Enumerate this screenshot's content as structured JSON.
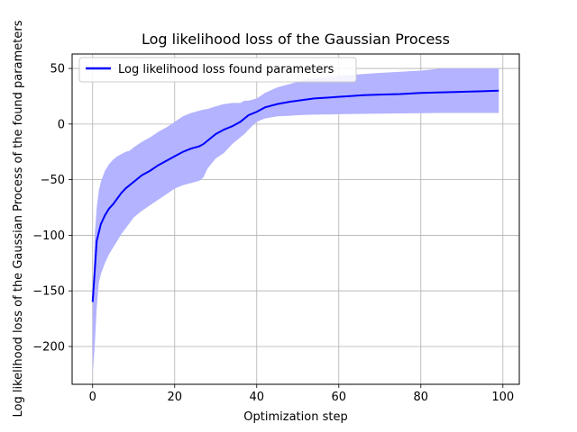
{
  "chart_data": {
    "type": "line",
    "title": "Log likelihood loss of the Gaussian Process",
    "xlabel": "Optimization step",
    "ylabel": "Log likelihood loss of the Gaussian Process of the found parameters",
    "xlim": [
      -5,
      104
    ],
    "ylim": [
      -234,
      63
    ],
    "xticks": [
      0,
      20,
      40,
      60,
      80,
      100
    ],
    "yticks": [
      -200,
      -150,
      -100,
      -50,
      0,
      50
    ],
    "grid": true,
    "legend_position": "upper-left",
    "colors": {
      "line": "#0000ff",
      "band": "#b3b3ff",
      "grid": "#b0b0b0"
    },
    "series": [
      {
        "name": "Log likelihood loss found parameters",
        "x": [
          0,
          1,
          2,
          3,
          4,
          5,
          6,
          7,
          8,
          9,
          10,
          12,
          14,
          16,
          18,
          20,
          22,
          24,
          26,
          27,
          28,
          30,
          32,
          34,
          36,
          37,
          38,
          40,
          42,
          45,
          48,
          50,
          52,
          54,
          58,
          62,
          66,
          70,
          75,
          80,
          85,
          90,
          95,
          99
        ],
        "y": [
          -160,
          -105,
          -90,
          -82,
          -76,
          -72,
          -67,
          -62,
          -58,
          -55,
          -52,
          -46,
          -42,
          -37,
          -33,
          -29,
          -25,
          -22,
          -20,
          -18,
          -15,
          -9,
          -5,
          -2,
          2,
          5,
          8,
          11,
          15,
          18,
          20,
          21,
          22,
          23,
          24,
          25,
          26,
          26.5,
          27,
          28,
          28.5,
          29,
          29.5,
          30
        ]
      }
    ],
    "band": {
      "x": [
        0,
        0.5,
        1,
        1.5,
        2,
        3,
        4,
        5,
        6,
        7,
        8,
        9,
        10,
        12,
        14,
        16,
        18,
        20,
        22,
        24,
        26,
        27,
        28,
        30,
        32,
        34,
        36,
        37,
        38,
        40,
        42,
        45,
        48,
        50,
        52,
        54,
        58,
        62,
        66,
        70,
        75,
        80,
        85,
        90,
        95,
        99
      ],
      "lower": [
        -225,
        -200,
        -165,
        -143,
        -135,
        -125,
        -117,
        -111,
        -105,
        -99,
        -94,
        -89,
        -84,
        -78,
        -73,
        -68,
        -63,
        -58,
        -55,
        -53,
        -51,
        -48,
        -40,
        -31,
        -26,
        -18,
        -12,
        -9,
        -5,
        2,
        5,
        7,
        7.5,
        8,
        8.3,
        8.5,
        8.7,
        9,
        9.2,
        9.4,
        9.6,
        9.8,
        10,
        10,
        10,
        10
      ],
      "upper": [
        -170,
        -100,
        -75,
        -60,
        -52,
        -42,
        -36,
        -32,
        -29,
        -27,
        -25,
        -24,
        -21,
        -16,
        -12,
        -7,
        -3,
        2,
        7,
        10,
        12,
        13,
        13.5,
        16,
        18,
        19,
        19,
        21,
        21,
        23,
        28,
        33,
        36,
        38,
        40,
        41,
        43,
        44,
        45,
        46,
        47,
        48,
        50,
        50,
        50,
        50
      ]
    }
  }
}
